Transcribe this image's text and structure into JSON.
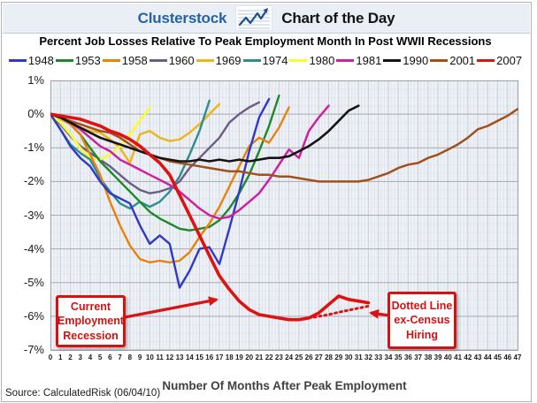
{
  "header": {
    "brand": "Clusterstock",
    "title": "Chart of the Day",
    "brand_color": "#2563a8",
    "icon": "line-chart-icon"
  },
  "source": "Source: CalculatedRisk (06/04/10)",
  "chart_data": {
    "type": "line",
    "title": "Percent Job Losses Relative To Peak Employment Month In Post WWII Recessions",
    "xlabel": "Number Of Months After Peak Employment",
    "ylabel": "",
    "xlim": [
      0,
      47
    ],
    "ylim": [
      -7,
      1
    ],
    "grid": true,
    "legend_position": "top",
    "y_ticks": [
      "1%",
      "0%",
      "-1%",
      "-2%",
      "-3%",
      "-4%",
      "-5%",
      "-6%",
      "-7%"
    ],
    "y_tick_values": [
      1,
      0,
      -1,
      -2,
      -3,
      -4,
      -5,
      -6,
      -7
    ],
    "x_ticks": [
      0,
      1,
      2,
      3,
      4,
      5,
      6,
      7,
      8,
      9,
      10,
      11,
      12,
      13,
      14,
      15,
      16,
      17,
      18,
      19,
      20,
      21,
      22,
      23,
      24,
      25,
      26,
      27,
      28,
      29,
      30,
      31,
      32,
      33,
      34,
      35,
      36,
      37,
      38,
      39,
      40,
      41,
      42,
      43,
      44,
      45,
      46,
      47
    ],
    "series": [
      {
        "name": "1948",
        "color": "#3038c8",
        "width": 2.4,
        "values": [
          0,
          -0.45,
          -0.95,
          -1.3,
          -1.55,
          -2.0,
          -2.35,
          -2.5,
          -2.65,
          -3.3,
          -3.85,
          -3.6,
          -3.85,
          -5.15,
          -4.65,
          -4.0,
          -3.95,
          -4.45,
          -3.4,
          -2.3,
          -1.1,
          -0.1,
          0.45
        ]
      },
      {
        "name": "1953",
        "color": "#1c8a28",
        "width": 2.4,
        "values": [
          0,
          -0.1,
          -0.3,
          -0.6,
          -1.0,
          -1.4,
          -1.7,
          -2.0,
          -2.3,
          -2.6,
          -2.9,
          -3.1,
          -3.25,
          -3.4,
          -3.45,
          -3.4,
          -3.35,
          -3.15,
          -2.8,
          -2.35,
          -1.8,
          -1.1,
          -0.35,
          0.55
        ]
      },
      {
        "name": "1958",
        "color": "#e8820c",
        "width": 2.4,
        "values": [
          0,
          -0.1,
          -0.3,
          -0.6,
          -1.2,
          -1.8,
          -2.6,
          -3.3,
          -3.9,
          -4.3,
          -4.4,
          -4.35,
          -4.4,
          -4.35,
          -4.1,
          -3.65,
          -3.25,
          -2.75,
          -2.15,
          -1.55,
          -0.95,
          -0.7,
          -0.85,
          -0.4,
          0.2
        ]
      },
      {
        "name": "1960",
        "color": "#6b5d85",
        "width": 2.4,
        "values": [
          0,
          -0.3,
          -0.65,
          -0.95,
          -1.15,
          -1.35,
          -1.55,
          -1.8,
          -2.05,
          -2.25,
          -2.35,
          -2.3,
          -2.2,
          -2.0,
          -1.6,
          -1.3,
          -1.0,
          -0.7,
          -0.25,
          0.0,
          0.2,
          0.35
        ]
      },
      {
        "name": "1969",
        "color": "#ecb71e",
        "width": 2.5,
        "values": [
          0,
          -0.15,
          -0.3,
          -0.4,
          -0.5,
          -0.55,
          -0.75,
          -1.0,
          -1.45,
          -0.6,
          -0.5,
          -0.7,
          -0.8,
          -0.75,
          -0.55,
          -0.3,
          0.0,
          0.3
        ]
      },
      {
        "name": "1974",
        "color": "#2d8d93",
        "width": 2.4,
        "values": [
          0,
          -0.45,
          -0.9,
          -1.15,
          -1.35,
          -1.9,
          -2.3,
          -2.65,
          -2.8,
          -2.6,
          -2.75,
          -2.6,
          -2.3,
          -1.85,
          -1.2,
          -0.5,
          0.4
        ]
      },
      {
        "name": "1980",
        "color": "#fbfb2e",
        "width": 2.6,
        "values": [
          0,
          -0.25,
          -0.6,
          -1.0,
          -1.3,
          -1.35,
          -1.2,
          -0.95,
          -0.6,
          -0.2,
          0.2
        ]
      },
      {
        "name": "1981",
        "color": "#cc22a0",
        "width": 2.5,
        "values": [
          0,
          -0.1,
          -0.25,
          -0.45,
          -0.7,
          -0.95,
          -1.1,
          -1.35,
          -1.5,
          -1.65,
          -1.8,
          -1.95,
          -2.1,
          -2.3,
          -2.55,
          -2.8,
          -3.0,
          -3.1,
          -3.05,
          -2.85,
          -2.6,
          -2.35,
          -1.95,
          -1.5,
          -1.05,
          -1.3,
          -0.5,
          -0.1,
          0.25
        ]
      },
      {
        "name": "1990",
        "color": "#141414",
        "width": 2.6,
        "values": [
          0,
          -0.1,
          -0.25,
          -0.4,
          -0.55,
          -0.7,
          -0.8,
          -0.9,
          -1.0,
          -1.1,
          -1.2,
          -1.3,
          -1.35,
          -1.4,
          -1.4,
          -1.35,
          -1.4,
          -1.35,
          -1.4,
          -1.35,
          -1.4,
          -1.35,
          -1.3,
          -1.3,
          -1.25,
          -1.1,
          -0.95,
          -0.75,
          -0.5,
          -0.2,
          0.1,
          0.25
        ]
      },
      {
        "name": "2001",
        "color": "#a0501a",
        "width": 2.5,
        "values": [
          0,
          -0.1,
          -0.2,
          -0.3,
          -0.4,
          -0.5,
          -0.55,
          -0.7,
          -0.9,
          -1.1,
          -1.2,
          -1.3,
          -1.4,
          -1.45,
          -1.5,
          -1.55,
          -1.6,
          -1.65,
          -1.7,
          -1.7,
          -1.75,
          -1.8,
          -1.8,
          -1.85,
          -1.85,
          -1.9,
          -1.95,
          -2.0,
          -2.0,
          -2.0,
          -2.0,
          -2.0,
          -1.95,
          -1.85,
          -1.75,
          -1.6,
          -1.5,
          -1.45,
          -1.3,
          -1.2,
          -1.05,
          -0.9,
          -0.7,
          -0.45,
          -0.35,
          -0.2,
          -0.05,
          0.15
        ]
      },
      {
        "name": "2007",
        "color": "#e01111",
        "width": 3.6,
        "values": [
          0,
          -0.05,
          -0.1,
          -0.15,
          -0.25,
          -0.35,
          -0.5,
          -0.6,
          -0.75,
          -0.95,
          -1.2,
          -1.45,
          -1.8,
          -2.4,
          -3.0,
          -3.6,
          -4.2,
          -4.8,
          -5.2,
          -5.55,
          -5.8,
          -5.95,
          -6.0,
          -6.05,
          -6.1,
          -6.1,
          -6.05,
          -5.9,
          -5.65,
          -5.4,
          -5.5,
          -5.55,
          -5.6
        ]
      }
    ],
    "dotted_series": {
      "name": "2007 ex-Census Hiring",
      "color": "#e01111",
      "style": "dotted",
      "start_month": 26,
      "values": [
        -6.05,
        -6.0,
        -5.95,
        -5.88,
        -5.82,
        -5.76,
        -5.7
      ]
    },
    "annotations": [
      {
        "id": "current-recession",
        "lines": [
          "Current",
          "Employment",
          "Recession"
        ],
        "arrow_points_to_month": 17
      },
      {
        "id": "ex-census",
        "lines": [
          "Dotted Line",
          "ex-Census",
          "Hiring"
        ],
        "arrow_points_to_month": 32
      }
    ]
  }
}
